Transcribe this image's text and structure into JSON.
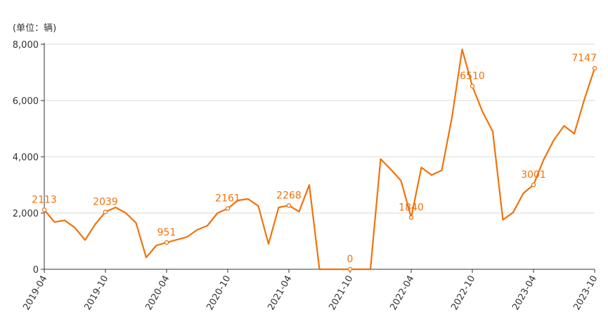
{
  "chart_data": {
    "type": "line",
    "unit_label": "(单位：辆)",
    "ylim": [
      0,
      8000
    ],
    "yticks": [
      0,
      2000,
      4000,
      6000,
      8000
    ],
    "ytick_labels": [
      "0",
      "2,000",
      "4,000",
      "6,000",
      "8,000"
    ],
    "grid": true,
    "line_color": "#f0730a",
    "grid_color": "#d9d9d9",
    "axis_color": "#333333",
    "xtick_labels": [
      "2019-04",
      "2019-10",
      "2020-04",
      "2020-10",
      "2021-04",
      "2021-10",
      "2022-04",
      "2022-10",
      "2023-04",
      "2023-10"
    ],
    "xtick_indices": [
      0,
      6,
      12,
      18,
      24,
      30,
      36,
      42,
      48,
      54
    ],
    "x": [
      "2019-04",
      "2019-05",
      "2019-06",
      "2019-07",
      "2019-08",
      "2019-09",
      "2019-10",
      "2019-11",
      "2019-12",
      "2020-01",
      "2020-02",
      "2020-03",
      "2020-04",
      "2020-05",
      "2020-06",
      "2020-07",
      "2020-08",
      "2020-09",
      "2020-10",
      "2020-11",
      "2020-12",
      "2021-01",
      "2021-02",
      "2021-03",
      "2021-04",
      "2021-05",
      "2021-06",
      "2021-07",
      "2021-08",
      "2021-09",
      "2021-10",
      "2021-11",
      "2021-12",
      "2022-01",
      "2022-02",
      "2022-03",
      "2022-04",
      "2022-05",
      "2022-06",
      "2022-07",
      "2022-08",
      "2022-09",
      "2022-10",
      "2022-11",
      "2022-12",
      "2023-01",
      "2023-02",
      "2023-03",
      "2023-04",
      "2023-05",
      "2023-06",
      "2023-07",
      "2023-08",
      "2023-09",
      "2023-10"
    ],
    "values": [
      2113,
      1680,
      1740,
      1480,
      1040,
      1600,
      2039,
      2200,
      2000,
      1650,
      420,
      850,
      951,
      1050,
      1150,
      1400,
      1550,
      2000,
      2161,
      2450,
      2500,
      2250,
      900,
      2200,
      2268,
      2050,
      3000,
      0,
      0,
      0,
      0,
      0,
      0,
      3920,
      3550,
      3150,
      1840,
      3620,
      3350,
      3520,
      5400,
      7820,
      6510,
      5600,
      4900,
      1760,
      2020,
      2700,
      3001,
      3900,
      4600,
      5100,
      4820,
      6050,
      7147
    ],
    "labeled_points": [
      {
        "index": 0,
        "label": "2113"
      },
      {
        "index": 6,
        "label": "2039"
      },
      {
        "index": 12,
        "label": "951"
      },
      {
        "index": 18,
        "label": "2161"
      },
      {
        "index": 24,
        "label": "2268"
      },
      {
        "index": 30,
        "label": "0"
      },
      {
        "index": 36,
        "label": "1840"
      },
      {
        "index": 42,
        "label": "6510"
      },
      {
        "index": 48,
        "label": "3001"
      },
      {
        "index": 54,
        "label": "7147"
      }
    ]
  }
}
